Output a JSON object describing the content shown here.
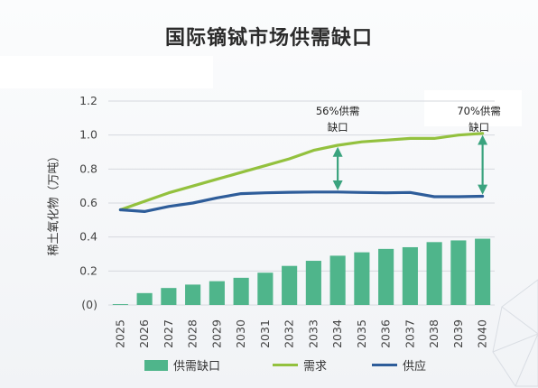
{
  "title": "国际镝铽市场供需缺口",
  "chart_data": {
    "type": "bar+line",
    "ylabel": "稀土氧化物（万吨）",
    "ylim": [
      0,
      1.2
    ],
    "yticks": [
      "(0)",
      "0.2",
      "0.4",
      "0.6",
      "0.8",
      "1.0",
      "1.2"
    ],
    "categories": [
      "2025",
      "2026",
      "2027",
      "2028",
      "2029",
      "2030",
      "2031",
      "2032",
      "2033",
      "2034",
      "2035",
      "2036",
      "2037",
      "2038",
      "2039",
      "2040"
    ],
    "series": [
      {
        "name": "供需缺口",
        "type": "bar",
        "color": "#4fb58b",
        "values": [
          0.005,
          0.07,
          0.1,
          0.12,
          0.14,
          0.16,
          0.19,
          0.23,
          0.26,
          0.29,
          0.31,
          0.33,
          0.34,
          0.37,
          0.38,
          0.39
        ]
      },
      {
        "name": "需求",
        "type": "line",
        "color": "#93c13e",
        "values": [
          0.56,
          0.61,
          0.66,
          0.7,
          0.74,
          0.78,
          0.82,
          0.86,
          0.91,
          0.94,
          0.96,
          0.97,
          0.98,
          0.98,
          1.0,
          1.01
        ]
      },
      {
        "name": "供应",
        "type": "line",
        "color": "#2e5d9a",
        "values": [
          0.56,
          0.55,
          0.58,
          0.6,
          0.63,
          0.655,
          0.66,
          0.663,
          0.665,
          0.665,
          0.662,
          0.66,
          0.662,
          0.637,
          0.637,
          0.64
        ]
      }
    ],
    "annotations": [
      {
        "category": "2034",
        "line1": "56%供需",
        "line2": "缺口"
      },
      {
        "category": "2040",
        "line1": "70%供需",
        "line2": "缺口"
      }
    ],
    "legend_position": "bottom"
  }
}
